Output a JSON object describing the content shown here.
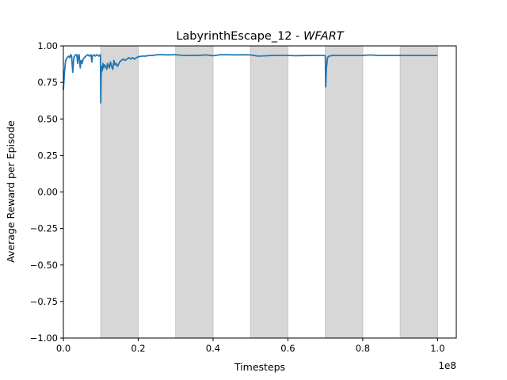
{
  "chart_data": {
    "type": "line",
    "title_prefix": "LabyrinthEscape_12 - ",
    "title_italic": "WFART",
    "xlabel": "Timesteps",
    "ylabel": "Average Reward per Episode",
    "x_offset_label": "1e8",
    "xlim": [
      0,
      1.05
    ],
    "ylim": [
      -1.0,
      1.0
    ],
    "x_ticks": [
      0.0,
      0.2,
      0.4,
      0.6,
      0.8,
      1.0
    ],
    "x_tick_labels": [
      "0.0",
      "0.2",
      "0.4",
      "0.6",
      "0.8",
      "1.0"
    ],
    "y_ticks": [
      -1.0,
      -0.75,
      -0.5,
      -0.25,
      0.0,
      0.25,
      0.5,
      0.75,
      1.0
    ],
    "y_tick_labels": [
      "−1.00",
      "−0.75",
      "−0.50",
      "−0.25",
      "0.00",
      "0.25",
      "0.50",
      "0.75",
      "1.00"
    ],
    "shaded_regions": [
      [
        0.1,
        0.2
      ],
      [
        0.3,
        0.4
      ],
      [
        0.5,
        0.6
      ],
      [
        0.7,
        0.8
      ],
      [
        0.9,
        1.0
      ]
    ],
    "shade_color": "#d7d7d7",
    "line_color": "#1f77b4",
    "series": [
      {
        "x": [
          0.0,
          0.003,
          0.006,
          0.01,
          0.014,
          0.017,
          0.02,
          0.022,
          0.025,
          0.028,
          0.03,
          0.033,
          0.036,
          0.038,
          0.04,
          0.042,
          0.045,
          0.047,
          0.05,
          0.053,
          0.056,
          0.06,
          0.065,
          0.07,
          0.074,
          0.076,
          0.078,
          0.082,
          0.085,
          0.09,
          0.095,
          0.099,
          0.1,
          0.101,
          0.102,
          0.104,
          0.106,
          0.108,
          0.11,
          0.113,
          0.116,
          0.118,
          0.12,
          0.123,
          0.126,
          0.129,
          0.132,
          0.135,
          0.138,
          0.141,
          0.145,
          0.15,
          0.155,
          0.16,
          0.165,
          0.17,
          0.175,
          0.18,
          0.185,
          0.19,
          0.195,
          0.2,
          0.21,
          0.22,
          0.23,
          0.24,
          0.25,
          0.26,
          0.27,
          0.28,
          0.29,
          0.3,
          0.32,
          0.34,
          0.36,
          0.38,
          0.4,
          0.42,
          0.44,
          0.46,
          0.48,
          0.5,
          0.52,
          0.54,
          0.56,
          0.58,
          0.6,
          0.62,
          0.64,
          0.66,
          0.68,
          0.69,
          0.698,
          0.7,
          0.701,
          0.703,
          0.706,
          0.71,
          0.72,
          0.74,
          0.76,
          0.78,
          0.8,
          0.82,
          0.84,
          0.86,
          0.88,
          0.9,
          0.92,
          0.94,
          0.96,
          0.98,
          1.0
        ],
        "y": [
          0.7,
          0.82,
          0.9,
          0.92,
          0.93,
          0.92,
          0.94,
          0.93,
          0.82,
          0.92,
          0.93,
          0.94,
          0.94,
          0.88,
          0.93,
          0.94,
          0.85,
          0.9,
          0.88,
          0.91,
          0.92,
          0.93,
          0.94,
          0.93,
          0.94,
          0.89,
          0.93,
          0.94,
          0.93,
          0.94,
          0.93,
          0.94,
          0.61,
          0.8,
          0.86,
          0.83,
          0.88,
          0.85,
          0.87,
          0.86,
          0.84,
          0.88,
          0.87,
          0.85,
          0.89,
          0.86,
          0.84,
          0.9,
          0.87,
          0.88,
          0.86,
          0.89,
          0.9,
          0.91,
          0.9,
          0.91,
          0.92,
          0.91,
          0.92,
          0.91,
          0.92,
          0.925,
          0.93,
          0.93,
          0.935,
          0.935,
          0.94,
          0.94,
          0.94,
          0.938,
          0.94,
          0.94,
          0.935,
          0.935,
          0.935,
          0.938,
          0.933,
          0.94,
          0.94,
          0.938,
          0.94,
          0.938,
          0.93,
          0.932,
          0.935,
          0.935,
          0.935,
          0.933,
          0.934,
          0.935,
          0.935,
          0.935,
          0.935,
          0.93,
          0.72,
          0.85,
          0.92,
          0.93,
          0.935,
          0.935,
          0.935,
          0.935,
          0.935,
          0.938,
          0.935,
          0.935,
          0.935,
          0.935,
          0.935,
          0.935,
          0.935,
          0.935,
          0.935
        ]
      }
    ]
  }
}
